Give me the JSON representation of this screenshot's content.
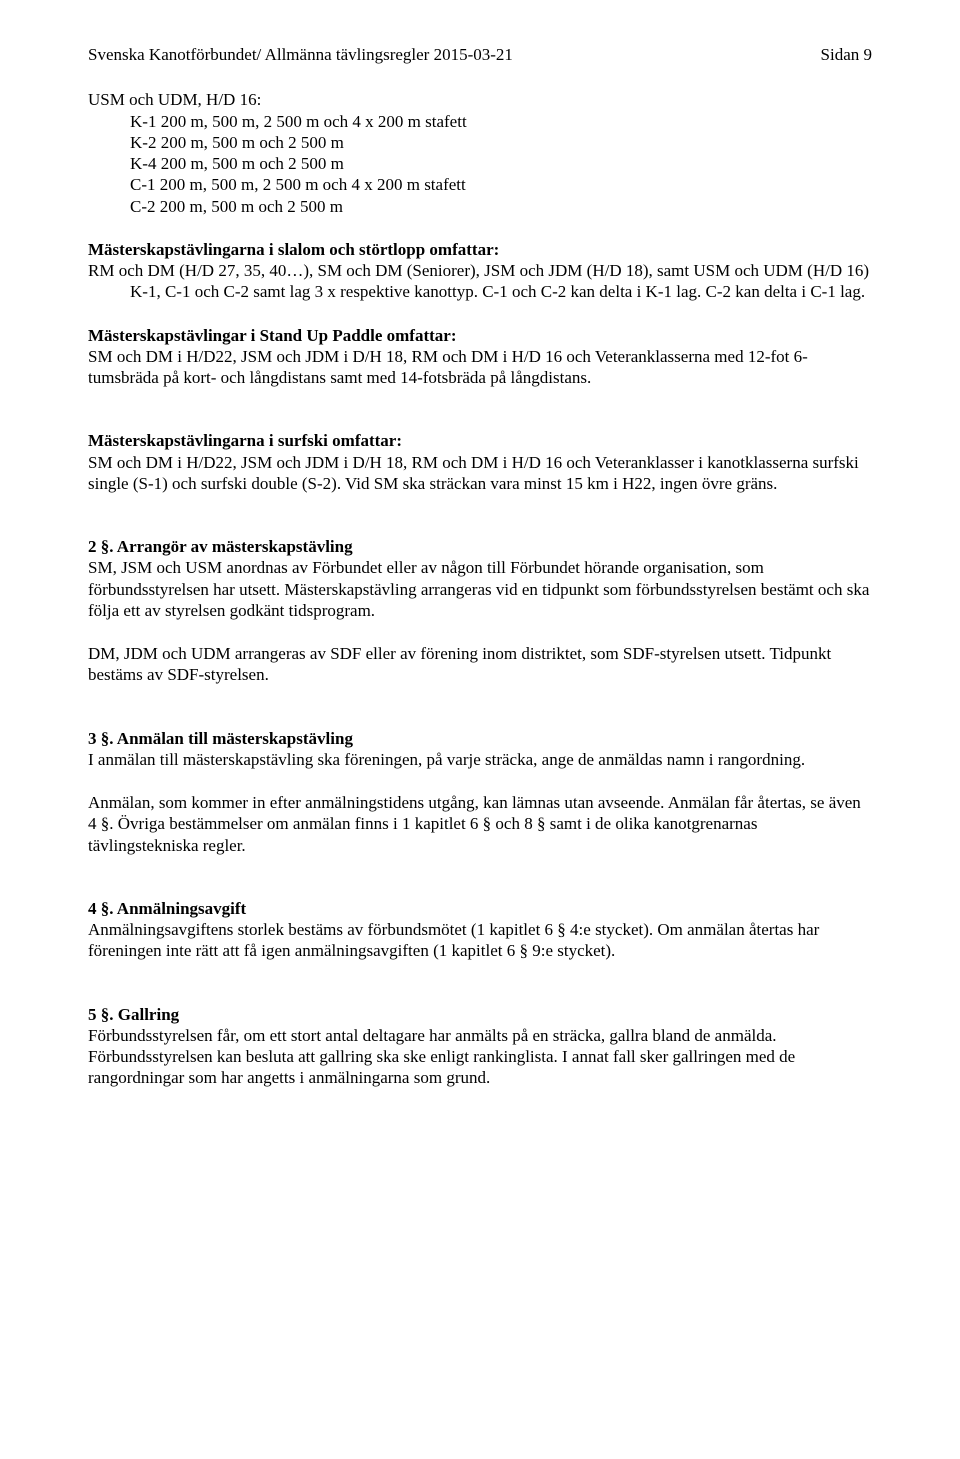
{
  "header": {
    "left": "Svenska Kanotförbundet/ Allmänna tävlingsregler 2015-03-21",
    "right": "Sidan 9"
  },
  "intro": {
    "usm_line": "USM och UDM, H/D 16:",
    "k1": "K-1 200 m, 500 m, 2 500 m och 4 x 200 m stafett",
    "k2": "K-2 200 m, 500 m och 2 500 m",
    "k4": "K-4 200 m, 500 m och 2 500 m",
    "c1": "C-1 200 m, 500 m, 2 500 m och 4 x 200 m stafett",
    "c2": "C-2 200 m, 500 m och 2 500 m"
  },
  "slalom": {
    "title": "Mästerskapstävlingarna i slalom och störtlopp omfattar:",
    "body1": "RM och DM (H/D 27, 35, 40…), SM och DM (Seniorer), JSM och JDM (H/D 18), samt USM och UDM (H/D 16)",
    "body2": "K-1, C-1 och C-2 samt lag 3 x respektive kanottyp. C-1 och C-2 kan delta i K-1 lag. C-2 kan delta i C-1 lag."
  },
  "sup": {
    "title": "Mästerskapstävlingar i Stand Up Paddle omfattar:",
    "body": "SM och DM i H/D22, JSM och JDM i D/H 18, RM och DM i H/D 16 och Veteranklasserna med 12-fot 6-tumsbräda på kort- och långdistans samt med 14-fotsbräda på långdistans."
  },
  "surfski": {
    "title": "Mästerskapstävlingarna i surfski omfattar:",
    "body": "SM och DM i H/D22, JSM och JDM i D/H 18, RM och DM i H/D 16 och Veteranklasser i kanotklasserna surfski single (S-1) och surfski double (S-2). Vid SM ska sträckan vara minst 15 km i H22, ingen övre gräns."
  },
  "sec2": {
    "title": "2 §. Arrangör av mästerskapstävling",
    "p1": "SM, JSM och USM anordnas av Förbundet eller av någon till Förbundet hörande organisation, som förbundsstyrelsen har utsett. Mästerskapstävling arrangeras vid en tidpunkt som förbundsstyrelsen bestämt och ska följa ett av styrelsen godkänt tidsprogram.",
    "p2": "DM, JDM och UDM arrangeras av SDF eller av förening inom distriktet, som SDF-styrelsen utsett. Tidpunkt bestäms av SDF-styrelsen."
  },
  "sec3": {
    "title": "3 §. Anmälan till mästerskapstävling",
    "p1": "I anmälan till mästerskapstävling ska föreningen, på varje sträcka, ange de anmäldas namn i rangordning.",
    "p2": "Anmälan, som kommer in efter anmälningstidens utgång, kan lämnas utan avseende. Anmälan får återtas, se även 4 §. Övriga bestämmelser om anmälan finns i 1 kapitlet 6 § och 8 § samt i de olika kanotgrenarnas tävlingstekniska regler."
  },
  "sec4": {
    "title": "4 §. Anmälningsavgift",
    "p1": "Anmälningsavgiftens storlek bestäms av förbundsmötet (1 kapitlet 6 § 4:e stycket). Om anmälan återtas har föreningen inte rätt att få igen anmälningsavgiften (1 kapitlet 6 § 9:e stycket)."
  },
  "sec5": {
    "title": "5 §. Gallring",
    "p1": "Förbundsstyrelsen får, om ett stort antal deltagare har anmälts på en sträcka, gallra bland de anmälda. Förbundsstyrelsen kan besluta att gallring ska ske enligt rankinglista. I annat fall sker gallringen med de rangordningar som har angetts i anmälningarna som grund."
  }
}
